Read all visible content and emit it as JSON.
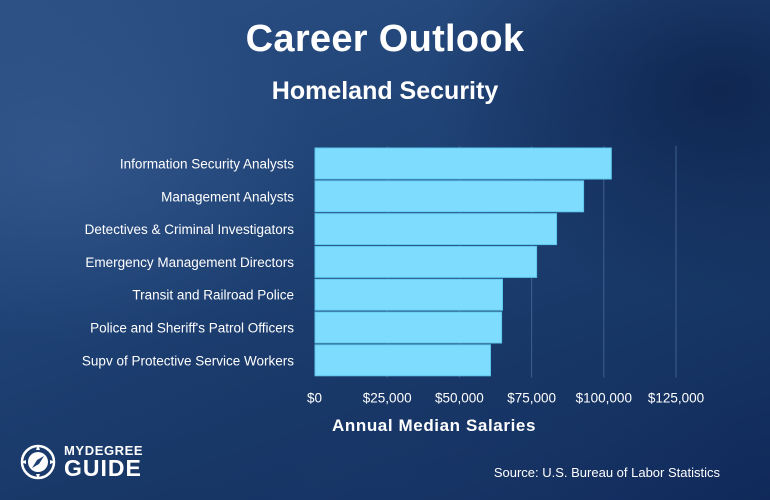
{
  "header": {
    "title": "Career Outlook",
    "subtitle": "Homeland Security"
  },
  "footer": {
    "source": "Source: U.S. Bureau of Labor Statistics",
    "logo_top": "MYDEGREE",
    "logo_bottom": "GUIDE"
  },
  "colors": {
    "bar": "#7edcff",
    "bar_stroke": "#5fc6ee",
    "gridline": "#3e5f8f",
    "text": "#ffffff"
  },
  "chart_data": {
    "type": "bar",
    "orientation": "horizontal",
    "title": "Career Outlook",
    "subtitle": "Homeland Security",
    "xlabel": "Annual Median Salaries",
    "ylabel": "",
    "categories": [
      "Information Security Analysts",
      "Management Analysts",
      "Detectives & Criminal Investigators",
      "Emergency Management Directors",
      "Transit and Railroad Police",
      "Police and Sheriff's Patrol Officers",
      "Supv of Protective Service Workers"
    ],
    "values": [
      102600,
      93000,
      83640,
      76730,
      64930,
      64610,
      60760
    ],
    "xlim": [
      0,
      125000
    ],
    "ticks": [
      0,
      25000,
      50000,
      75000,
      100000,
      125000
    ],
    "tick_labels": [
      "$0",
      "$25,000",
      "$50,000",
      "$75,000",
      "$100,000",
      "$125,000"
    ],
    "grid": true,
    "legend": "none"
  }
}
